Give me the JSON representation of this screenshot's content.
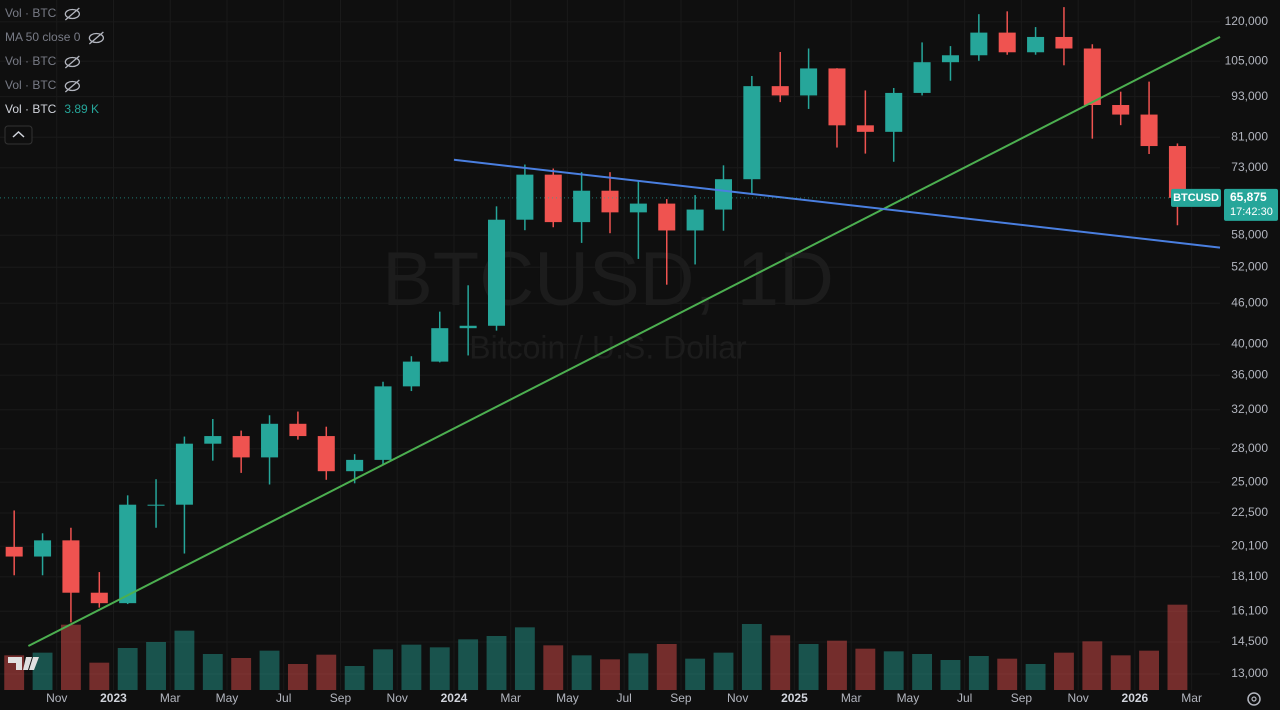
{
  "chart_data": {
    "type": "candlestick",
    "title": "BTCUSD, 1D",
    "subtitle": "Bitcoin / U.S. Dollar",
    "log_scale": true,
    "up_color": "#26a69a",
    "down_color": "#ef5350",
    "x": [
      "2022-09",
      "2022-10",
      "2022-11",
      "2022-12",
      "2023-01",
      "2023-02",
      "2023-03",
      "2023-04",
      "2023-05",
      "2023-06",
      "2023-07",
      "2023-08",
      "2023-09",
      "2023-10",
      "2023-11",
      "2023-12",
      "2024-01",
      "2024-02",
      "2024-03",
      "2024-04",
      "2024-05",
      "2024-06",
      "2024-07",
      "2024-08",
      "2024-09",
      "2024-10",
      "2024-11",
      "2024-12",
      "2025-01",
      "2025-02",
      "2025-03",
      "2025-04",
      "2025-05",
      "2025-06",
      "2025-07",
      "2025-08",
      "2025-09",
      "2025-10",
      "2025-11",
      "2025-12",
      "2026-01",
      "2026-02"
    ],
    "open": [
      20050,
      19400,
      20500,
      17150,
      16550,
      23150,
      23150,
      28500,
      29250,
      27200,
      30500,
      29250,
      25950,
      26970,
      34650,
      37700,
      42250,
      42600,
      61150,
      71300,
      60650,
      67500,
      62700,
      64600,
      58950,
      63300,
      70200,
      96400,
      93400,
      102400,
      84350,
      82500,
      94200,
      104600,
      107100,
      115700,
      108200,
      114000,
      109600,
      90400,
      87500,
      78600
    ],
    "high": [
      22700,
      21000,
      21400,
      18400,
      23900,
      25250,
      29200,
      31000,
      29800,
      31400,
      31800,
      30200,
      27500,
      35200,
      38400,
      44700,
      48900,
      64000,
      73800,
      72800,
      71900,
      71900,
      70000,
      65600,
      66500,
      73600,
      99800,
      108300,
      109600,
      102500,
      95000,
      95800,
      111900,
      110500,
      123200,
      124400,
      117900,
      126200,
      111200,
      94600,
      97900,
      79300
    ],
    "low": [
      18200,
      18200,
      15500,
      16300,
      16500,
      21400,
      19600,
      26900,
      25800,
      24800,
      28900,
      25200,
      24900,
      26500,
      34100,
      37600,
      38500,
      41900,
      59000,
      59600,
      56500,
      58400,
      53500,
      49000,
      52500,
      58900,
      66800,
      91300,
      89200,
      78200,
      76600,
      74500,
      93400,
      98200,
      105100,
      107300,
      107300,
      103500,
      80600,
      84400,
      76500,
      60000
    ],
    "close": [
      19400,
      20500,
      17150,
      16550,
      23150,
      23150,
      28500,
      29250,
      27200,
      30500,
      29250,
      25950,
      26970,
      34650,
      37700,
      42250,
      42600,
      61150,
      71300,
      60650,
      67500,
      62700,
      64600,
      58950,
      63300,
      70200,
      96400,
      93400,
      102400,
      84350,
      82500,
      94200,
      104600,
      107100,
      115700,
      108200,
      114000,
      109600,
      90400,
      87500,
      78600,
      65875
    ],
    "volume": [
      5200,
      5600,
      9800,
      4100,
      6300,
      7200,
      8900,
      5400,
      4800,
      5900,
      3900,
      5300,
      3600,
      6100,
      6800,
      6400,
      7600,
      8100,
      9400,
      6700,
      5200,
      4600,
      5500,
      6900,
      4700,
      5600,
      9900,
      8200,
      6900,
      7400,
      6200,
      5800,
      5400,
      4500,
      5100,
      4700,
      3900,
      5600,
      7300,
      5200,
      5900,
      12800
    ],
    "vlim": [
      0,
      30000
    ],
    "ylim": [
      12310,
      129300
    ],
    "yticks": [
      {
        "value": 13000,
        "label": "13,000"
      },
      {
        "value": 14500,
        "label": "14,500"
      },
      {
        "value": 16100,
        "label": "16,100"
      },
      {
        "value": 18100,
        "label": "18,100"
      },
      {
        "value": 20100,
        "label": "20,100"
      },
      {
        "value": 22500,
        "label": "22,500"
      },
      {
        "value": 25000,
        "label": "25,000"
      },
      {
        "value": 28000,
        "label": "28,000"
      },
      {
        "value": 32000,
        "label": "32,000"
      },
      {
        "value": 36000,
        "label": "36,000"
      },
      {
        "value": 40000,
        "label": "40,000"
      },
      {
        "value": 46000,
        "label": "46,000"
      },
      {
        "value": 52000,
        "label": "52,000"
      },
      {
        "value": 58000,
        "label": "58,000"
      },
      {
        "value": 73000,
        "label": "73,000"
      },
      {
        "value": 81000,
        "label": "81,000"
      },
      {
        "value": 93000,
        "label": "93,000"
      },
      {
        "value": 105000,
        "label": "105,000"
      },
      {
        "value": 120000,
        "label": "120,000"
      }
    ],
    "xlim": [
      "2022-09",
      "2026-04"
    ],
    "xticks": [
      {
        "value": "2022-11",
        "label": "Nov"
      },
      {
        "value": "2023-01",
        "label": "2023"
      },
      {
        "value": "2023-03",
        "label": "Mar"
      },
      {
        "value": "2023-05",
        "label": "May"
      },
      {
        "value": "2023-07",
        "label": "Jul"
      },
      {
        "value": "2023-09",
        "label": "Sep"
      },
      {
        "value": "2023-11",
        "label": "Nov"
      },
      {
        "value": "2024-01",
        "label": "2024"
      },
      {
        "value": "2024-03",
        "label": "Mar"
      },
      {
        "value": "2024-05",
        "label": "May"
      },
      {
        "value": "2024-07",
        "label": "Jul"
      },
      {
        "value": "2024-09",
        "label": "Sep"
      },
      {
        "value": "2024-11",
        "label": "Nov"
      },
      {
        "value": "2025-01",
        "label": "2025"
      },
      {
        "value": "2025-03",
        "label": "Mar"
      },
      {
        "value": "2025-05",
        "label": "May"
      },
      {
        "value": "2025-07",
        "label": "Jul"
      },
      {
        "value": "2025-09",
        "label": "Sep"
      },
      {
        "value": "2025-11",
        "label": "Nov"
      },
      {
        "value": "2026-01",
        "label": "2026"
      },
      {
        "value": "2026-03",
        "label": "Mar"
      }
    ],
    "trendlines": [
      {
        "color": "#4caf50",
        "x": [
          "2022-10",
          "2026-04"
        ],
        "values": [
          14300,
          114000
        ]
      },
      {
        "color": "#4a7fe0",
        "x": [
          "2024-01",
          "2026-04"
        ],
        "values": [
          75000,
          55600
        ]
      }
    ],
    "price_label": {
      "symbol": "BTCUSD",
      "value": 65875,
      "value_label": "65,875",
      "countdown": "17:42:30"
    },
    "indicators": [
      {
        "name": "Vol · BTC"
      },
      {
        "name": "MA 50 close 0"
      },
      {
        "name": "Vol · BTC"
      },
      {
        "name": "Vol · BTC"
      },
      {
        "name": "Vol · BTC",
        "value": 3890,
        "value_label": "3.89 K"
      }
    ]
  }
}
